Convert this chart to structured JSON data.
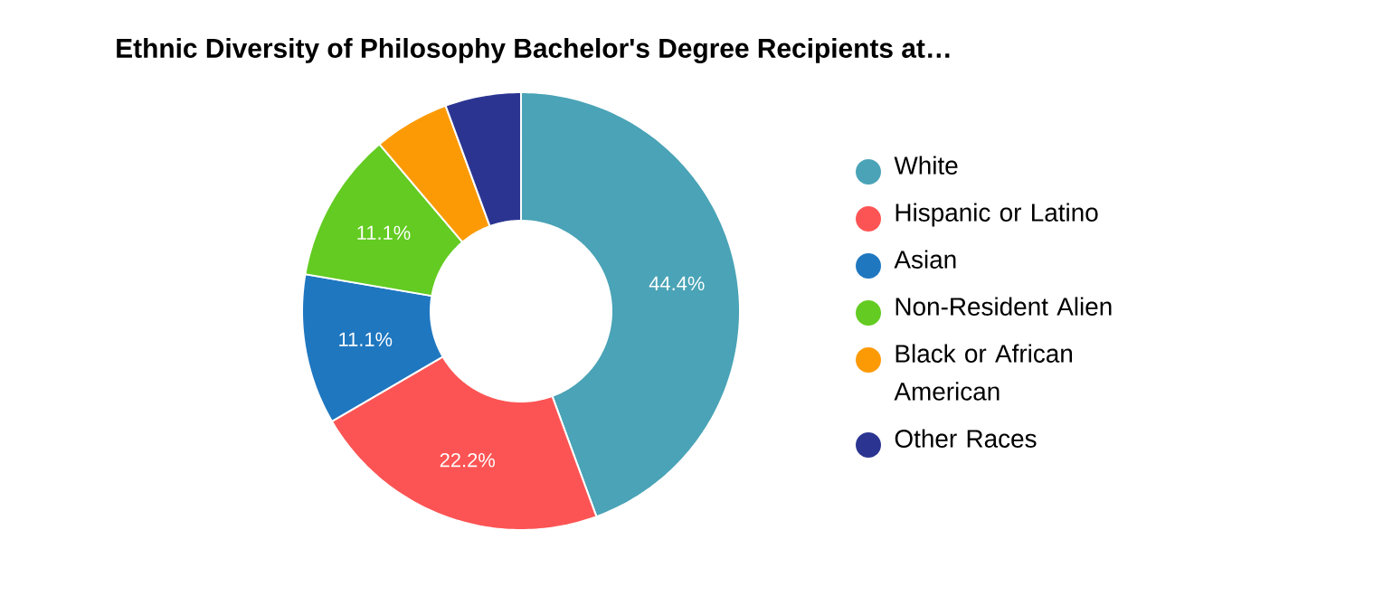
{
  "chart_data": {
    "type": "donut",
    "title": "Ethnic Diversity of Philosophy Bachelor's Degree Recipients at…",
    "categories": [
      "White",
      "Hispanic or Latino",
      "Asian",
      "Non-Resident Alien",
      "Black or African American",
      "Other Races"
    ],
    "values": [
      44.4,
      22.2,
      11.1,
      11.1,
      5.6,
      5.6
    ],
    "colors": [
      "#4aa3b6",
      "#fc5454",
      "#1f77c0",
      "#63cb21",
      "#fc9a06",
      "#2b3591"
    ],
    "value_labels": [
      "44.4%",
      "22.2%",
      "11.1%",
      "11.1%",
      null,
      null
    ],
    "legend": "right"
  }
}
